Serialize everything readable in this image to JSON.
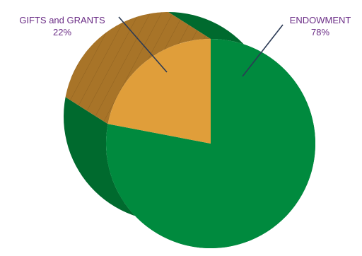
{
  "chart_data": {
    "type": "pie",
    "style": "3d",
    "title": "",
    "categories": [
      "ENDOWMENT",
      "GIFTS and GRANTS"
    ],
    "values": [
      78,
      22
    ],
    "value_labels": [
      "78%",
      "22%"
    ],
    "unit": "%",
    "legend": "none",
    "colors": {
      "ENDOWMENT": "#008a3e",
      "GIFTS and GRANTS": "#e09e3a"
    },
    "side_colors": {
      "ENDOWMENT": "#006a2e",
      "GIFTS and GRANTS": "#a87428"
    },
    "label_color": "#6b2d86"
  }
}
